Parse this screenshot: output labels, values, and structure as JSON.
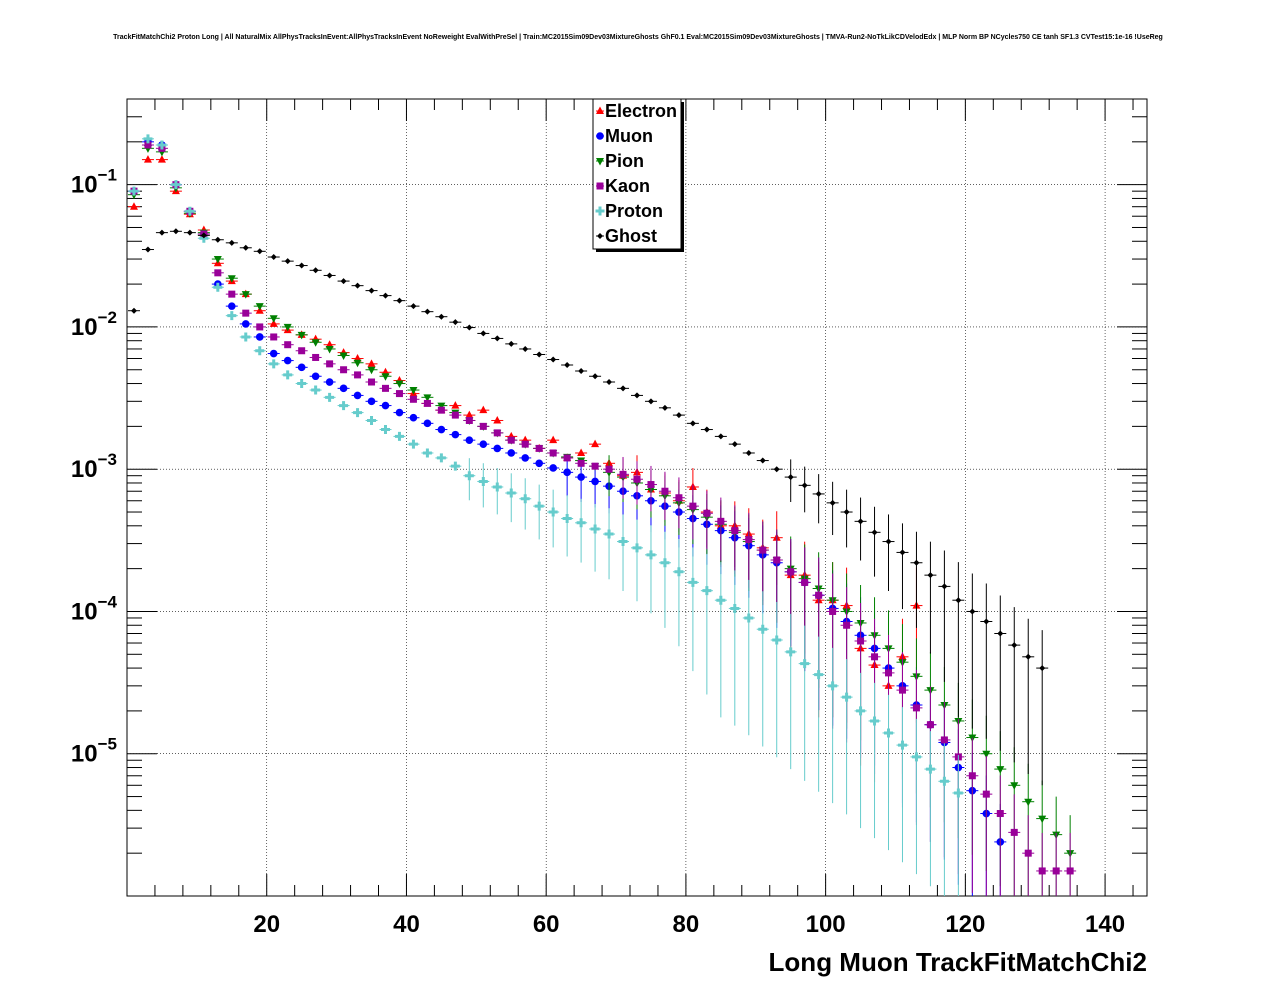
{
  "title": "TrackFitMatchChi2 Proton Long | All NaturalMix AllPhysTracksInEvent:AllPhysTracksInEvent NoReweight EvalWithPreSel | Train:MC2015Sim09Dev03MixtureGhosts GhF0.1 Eval:MC2015Sim09Dev03MixtureGhosts | TMVA-Run2-NoTkLikCDVelodEdx | MLP Norm BP NCycles750 CE tanh SF1.3 CVTest15:1e-16 !UseReg",
  "chart_data": {
    "type": "scatter",
    "title": "TrackFitMatchChi2 Proton Long | All NaturalMix AllPhysTracksInEvent:AllPhysTracksInEvent NoReweight EvalWithPreSel | Train:MC2015Sim09Dev03MixtureGhosts GhF0.1 Eval:MC2015Sim09Dev03MixtureGhosts | TMVA-Run2-NoTkLikCDVelodEdx | MLP Norm BP NCycles750 CE tanh SF1.3 CVTest15:1e-16 !UseReg",
    "xlabel": "Long Muon TrackFitMatchChi2",
    "ylabel": "",
    "xlim": [
      0,
      146
    ],
    "ylim": [
      1e-06,
      0.4
    ],
    "yscale": "log",
    "x_ticks": [
      20,
      40,
      60,
      80,
      100,
      120,
      140
    ],
    "y_ticks": [
      {
        "value": 0.1,
        "mant": "10",
        "exp": "−1"
      },
      {
        "value": 0.01,
        "mant": "10",
        "exp": "−2"
      },
      {
        "value": 0.001,
        "mant": "10",
        "exp": "−3"
      },
      {
        "value": 0.0001,
        "mant": "10",
        "exp": "−4"
      },
      {
        "value": 1e-05,
        "mant": "10",
        "exp": "−5"
      }
    ],
    "grid": true,
    "legend_position": "top-center",
    "series": [
      {
        "name": "Electron",
        "color": "#ff0000",
        "marker": "triangle-up",
        "x": [
          1,
          3,
          5,
          7,
          9,
          11,
          13,
          15,
          17,
          19,
          21,
          23,
          25,
          27,
          29,
          31,
          33,
          35,
          37,
          39,
          41,
          43,
          45,
          47,
          49,
          51,
          53,
          55,
          57,
          59,
          61,
          63,
          65,
          67,
          69,
          71,
          73,
          75,
          77,
          79,
          81,
          83,
          85,
          87,
          89,
          91,
          93,
          95,
          97,
          99,
          101,
          103,
          105,
          107,
          109,
          111,
          113
        ],
        "y": [
          0.07,
          0.15,
          0.15,
          0.09,
          0.062,
          0.048,
          0.028,
          0.021,
          0.017,
          0.013,
          0.0105,
          0.0095,
          0.0088,
          0.0082,
          0.0075,
          0.0066,
          0.006,
          0.0055,
          0.0048,
          0.0042,
          0.0034,
          0.0029,
          0.0026,
          0.0028,
          0.0024,
          0.0026,
          0.0022,
          0.0017,
          0.0016,
          0.0014,
          0.0016,
          0.0012,
          0.0013,
          0.0015,
          0.0011,
          0.0009,
          0.00095,
          0.00072,
          0.00068,
          0.0006,
          0.00075,
          0.0005,
          0.0004,
          0.0004,
          0.00035,
          0.00028,
          0.00033,
          0.00018,
          0.00018,
          0.00012,
          0.00012,
          0.00011,
          5.5e-05,
          4.2e-05,
          3e-05,
          4.8e-05,
          0.00011
        ]
      },
      {
        "name": "Muon",
        "color": "#0000ff",
        "marker": "circle",
        "x": [
          1,
          3,
          5,
          7,
          9,
          11,
          13,
          15,
          17,
          19,
          21,
          23,
          25,
          27,
          29,
          31,
          33,
          35,
          37,
          39,
          41,
          43,
          45,
          47,
          49,
          51,
          53,
          55,
          57,
          59,
          61,
          63,
          65,
          67,
          69,
          71,
          73,
          75,
          77,
          79,
          81,
          83,
          85,
          87,
          89,
          91,
          93,
          95,
          97,
          99,
          101,
          103,
          105,
          107,
          109,
          111,
          113,
          115,
          117,
          119,
          121,
          123,
          125
        ],
        "y": [
          0.09,
          0.2,
          0.19,
          0.1,
          0.065,
          0.045,
          0.02,
          0.014,
          0.0105,
          0.0085,
          0.0065,
          0.0058,
          0.0052,
          0.0045,
          0.0041,
          0.0037,
          0.0033,
          0.003,
          0.0028,
          0.0025,
          0.0023,
          0.0021,
          0.0019,
          0.00175,
          0.0016,
          0.0015,
          0.0014,
          0.0013,
          0.0012,
          0.0011,
          0.00102,
          0.00095,
          0.00088,
          0.00082,
          0.00076,
          0.0007,
          0.00065,
          0.0006,
          0.00055,
          0.0005,
          0.00045,
          0.00041,
          0.00037,
          0.00033,
          0.00029,
          0.00025,
          0.00022,
          0.00019,
          0.00016,
          0.00013,
          0.000105,
          8.5e-05,
          6.8e-05,
          5.5e-05,
          4e-05,
          3e-05,
          2.2e-05,
          1.6e-05,
          1.2e-05,
          8e-06,
          5.5e-06,
          3.8e-06,
          2.4e-06
        ]
      },
      {
        "name": "Pion",
        "color": "#008000",
        "marker": "triangle-down",
        "x": [
          1,
          3,
          5,
          7,
          9,
          11,
          13,
          15,
          17,
          19,
          21,
          23,
          25,
          27,
          29,
          31,
          33,
          35,
          37,
          39,
          41,
          43,
          45,
          47,
          49,
          51,
          53,
          55,
          57,
          59,
          61,
          63,
          65,
          67,
          69,
          71,
          73,
          75,
          77,
          79,
          81,
          83,
          85,
          87,
          89,
          91,
          93,
          95,
          97,
          99,
          101,
          103,
          105,
          107,
          109,
          111,
          113,
          115,
          117,
          119,
          121,
          123,
          125,
          127,
          129,
          131,
          133,
          135
        ],
        "y": [
          0.085,
          0.18,
          0.17,
          0.095,
          0.063,
          0.046,
          0.03,
          0.022,
          0.017,
          0.014,
          0.0115,
          0.01,
          0.0088,
          0.0078,
          0.007,
          0.0063,
          0.0056,
          0.005,
          0.0045,
          0.004,
          0.0036,
          0.0032,
          0.0028,
          0.0025,
          0.0022,
          0.002,
          0.0018,
          0.0016,
          0.0015,
          0.0014,
          0.0013,
          0.00122,
          0.00115,
          0.00105,
          0.00095,
          0.00088,
          0.0008,
          0.00072,
          0.00065,
          0.00058,
          0.00052,
          0.00046,
          0.00041,
          0.00036,
          0.00031,
          0.00027,
          0.00023,
          0.0002,
          0.00017,
          0.000145,
          0.00012,
          0.0001,
          8.3e-05,
          6.8e-05,
          5.5e-05,
          4.4e-05,
          3.5e-05,
          2.8e-05,
          2.2e-05,
          1.7e-05,
          1.3e-05,
          1e-05,
          7.8e-06,
          6e-06,
          4.6e-06,
          3.5e-06,
          2.7e-06,
          2e-06
        ]
      },
      {
        "name": "Kaon",
        "color": "#990099",
        "marker": "square",
        "x": [
          1,
          3,
          5,
          7,
          9,
          11,
          13,
          15,
          17,
          19,
          21,
          23,
          25,
          27,
          29,
          31,
          33,
          35,
          37,
          39,
          41,
          43,
          45,
          47,
          49,
          51,
          53,
          55,
          57,
          59,
          61,
          63,
          65,
          67,
          69,
          71,
          73,
          75,
          77,
          79,
          81,
          83,
          85,
          87,
          89,
          91,
          93,
          95,
          97,
          99,
          101,
          103,
          105,
          107,
          109,
          111,
          113,
          115,
          117,
          119,
          121,
          123,
          125,
          127,
          129,
          131,
          133,
          135
        ],
        "y": [
          0.09,
          0.19,
          0.18,
          0.1,
          0.065,
          0.045,
          0.024,
          0.017,
          0.0125,
          0.01,
          0.0085,
          0.0075,
          0.0068,
          0.0061,
          0.0055,
          0.005,
          0.0046,
          0.0041,
          0.0037,
          0.0034,
          0.0031,
          0.0029,
          0.0026,
          0.0024,
          0.0022,
          0.002,
          0.0018,
          0.0016,
          0.0015,
          0.0014,
          0.0013,
          0.0012,
          0.0011,
          0.00105,
          0.001,
          0.00092,
          0.00085,
          0.00078,
          0.0007,
          0.00063,
          0.00055,
          0.00049,
          0.00043,
          0.00037,
          0.00032,
          0.00027,
          0.00023,
          0.00019,
          0.00016,
          0.00013,
          0.0001,
          8e-05,
          6.2e-05,
          4.8e-05,
          3.7e-05,
          2.8e-05,
          2.1e-05,
          1.6e-05,
          1.25e-05,
          9.5e-06,
          7e-06,
          5.2e-06,
          3.8e-06,
          2.8e-06,
          2e-06,
          1.5e-06,
          1.5e-06,
          1.5e-06
        ]
      },
      {
        "name": "Proton",
        "color": "#66cccc",
        "marker": "cross",
        "x": [
          1,
          3,
          5,
          7,
          9,
          11,
          13,
          15,
          17,
          19,
          21,
          23,
          25,
          27,
          29,
          31,
          33,
          35,
          37,
          39,
          41,
          43,
          45,
          47,
          49,
          51,
          53,
          55,
          57,
          59,
          61,
          63,
          65,
          67,
          69,
          71,
          73,
          75,
          77,
          79,
          81,
          83,
          85,
          87,
          89,
          91,
          93,
          95,
          97,
          99,
          101,
          103,
          105,
          107,
          109,
          111,
          113,
          115,
          117,
          119
        ],
        "y": [
          0.09,
          0.21,
          0.19,
          0.1,
          0.065,
          0.042,
          0.019,
          0.012,
          0.0085,
          0.0068,
          0.0055,
          0.0046,
          0.004,
          0.0036,
          0.0032,
          0.0028,
          0.0025,
          0.0022,
          0.0019,
          0.0017,
          0.0015,
          0.0013,
          0.0012,
          0.00105,
          0.0009,
          0.00082,
          0.00075,
          0.00068,
          0.00062,
          0.00055,
          0.0005,
          0.00045,
          0.00042,
          0.00038,
          0.00035,
          0.00031,
          0.00028,
          0.00025,
          0.00022,
          0.00019,
          0.00016,
          0.00014,
          0.00012,
          0.000105,
          9e-05,
          7.5e-05,
          6.3e-05,
          5.2e-05,
          4.3e-05,
          3.6e-05,
          3e-05,
          2.5e-05,
          2e-05,
          1.7e-05,
          1.4e-05,
          1.15e-05,
          9.5e-06,
          7.8e-06,
          6.4e-06,
          5.3e-06
        ]
      },
      {
        "name": "Ghost",
        "color": "#000000",
        "marker": "cross-small",
        "x": [
          1,
          3,
          5,
          7,
          9,
          11,
          13,
          15,
          17,
          19,
          21,
          23,
          25,
          27,
          29,
          31,
          33,
          35,
          37,
          39,
          41,
          43,
          45,
          47,
          49,
          51,
          53,
          55,
          57,
          59,
          61,
          63,
          65,
          67,
          69,
          71,
          73,
          75,
          77,
          79,
          81,
          83,
          85,
          87,
          89,
          91,
          93,
          95,
          97,
          99,
          101,
          103,
          105,
          107,
          109,
          111,
          113,
          115,
          117,
          119,
          121,
          123,
          125,
          127,
          129,
          131
        ],
        "y": [
          0.013,
          0.035,
          0.046,
          0.047,
          0.046,
          0.044,
          0.041,
          0.039,
          0.036,
          0.034,
          0.031,
          0.029,
          0.027,
          0.025,
          0.023,
          0.021,
          0.0195,
          0.018,
          0.0166,
          0.0153,
          0.014,
          0.0128,
          0.0118,
          0.0108,
          0.0099,
          0.009,
          0.0083,
          0.0076,
          0.007,
          0.0064,
          0.0059,
          0.0054,
          0.0049,
          0.0045,
          0.0041,
          0.0037,
          0.0033,
          0.003,
          0.0027,
          0.0024,
          0.0021,
          0.0019,
          0.0017,
          0.0015,
          0.0013,
          0.00115,
          0.001,
          0.00088,
          0.00077,
          0.00067,
          0.00058,
          0.0005,
          0.00043,
          0.00036,
          0.00031,
          0.00026,
          0.00022,
          0.00018,
          0.00015,
          0.00012,
          0.0001,
          8.5e-05,
          7e-05,
          5.8e-05,
          4.8e-05,
          4e-05
        ]
      }
    ]
  }
}
